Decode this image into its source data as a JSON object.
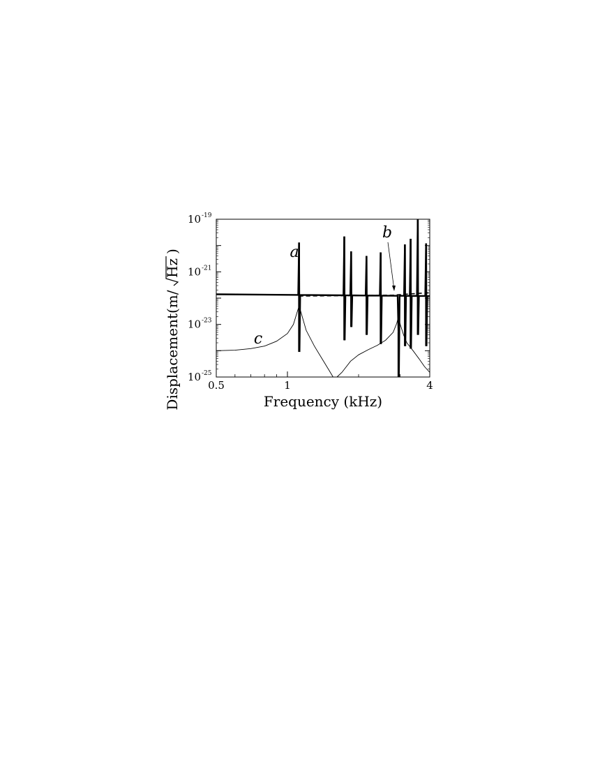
{
  "chart_data": {
    "type": "line",
    "xlabel": "Frequency (kHz)",
    "ylabel_prefix": "Displacement ",
    "ylabel_unit_m": "(m/",
    "ylabel_unit_hz": "Hz",
    "ylabel_unit_close": ")",
    "x_scale": "log",
    "y_scale": "log",
    "xlim": [
      0.5,
      4
    ],
    "ylim": [
      1e-25,
      1e-19
    ],
    "x_ticks": [
      {
        "value": 0.5,
        "label": "0.5"
      },
      {
        "value": 1,
        "label": "1"
      },
      {
        "value": 4,
        "label": "4"
      }
    ],
    "y_ticks": [
      {
        "value": 1e-25,
        "base": "10",
        "exp": "-25"
      },
      {
        "value": 1e-23,
        "base": "10",
        "exp": "-23"
      },
      {
        "value": 1e-21,
        "base": "10",
        "exp": "-21"
      },
      {
        "value": 1e-19,
        "base": "10",
        "exp": "-19"
      }
    ],
    "grid": false,
    "annotations": [
      {
        "text": "a",
        "x": 1.1,
        "y": 1.2e-21
      },
      {
        "text": "b",
        "x": 3.0,
        "y": 1.2e-20
      },
      {
        "text": "c",
        "x": 0.8,
        "y": 6e-24
      }
    ],
    "series": [
      {
        "style": "thick",
        "baseline_left": 1.4e-22,
        "baseline_right": 1.2e-22,
        "resonances": [
          {
            "f_khz": 1.12,
            "peak": 1.3e-20,
            "dip": 9e-25
          },
          {
            "f_khz": 1.74,
            "peak": 2.2e-20,
            "dip": 2.5e-24
          },
          {
            "f_khz": 1.86,
            "peak": 6e-21,
            "dip": 8e-24
          },
          {
            "f_khz": 2.16,
            "peak": 4e-21,
            "dip": 4e-24
          },
          {
            "f_khz": 2.48,
            "peak": 5.5e-21,
            "dip": 1.8e-24
          },
          {
            "f_khz": 2.95,
            "peak": 5e-24,
            "dip": 1e-25
          },
          {
            "f_khz": 3.14,
            "peak": 1.1e-20,
            "dip": 1.5e-24
          },
          {
            "f_khz": 3.32,
            "peak": 1.8e-20,
            "dip": 1.2e-24
          },
          {
            "f_khz": 3.56,
            "peak": 1e-19,
            "dip": 4e-24
          },
          {
            "f_khz": 3.86,
            "peak": 1.2e-20,
            "dip": 1.5e-24
          }
        ]
      },
      {
        "style": "dashed",
        "points": [
          [
            1.12,
            1.2e-22
          ],
          [
            2.0,
            1.25e-22
          ],
          [
            2.8,
            1.3e-22
          ],
          [
            3.3,
            1.45e-22
          ],
          [
            4.0,
            1.6e-22
          ]
        ]
      },
      {
        "style": "thin",
        "points": [
          [
            0.5,
            1e-24
          ],
          [
            0.6,
            1.05e-24
          ],
          [
            0.7,
            1.2e-24
          ],
          [
            0.8,
            1.5e-24
          ],
          [
            0.9,
            2.3e-24
          ],
          [
            1.0,
            4.5e-24
          ],
          [
            1.06,
            1e-23
          ],
          [
            1.1,
            3e-23
          ],
          [
            1.12,
            5e-23
          ],
          [
            1.14,
            3e-23
          ],
          [
            1.2,
            6e-24
          ],
          [
            1.3,
            1.5e-24
          ],
          [
            1.4,
            5e-25
          ],
          [
            1.5,
            1.8e-25
          ],
          [
            1.56,
            1e-25
          ]
        ]
      },
      {
        "style": "thin",
        "points": [
          [
            1.62,
            1e-25
          ],
          [
            1.7,
            1.5e-25
          ],
          [
            1.85,
            4e-25
          ],
          [
            2.0,
            7e-25
          ],
          [
            2.2,
            1.1e-24
          ],
          [
            2.4,
            1.6e-24
          ],
          [
            2.6,
            2.5e-24
          ],
          [
            2.8,
            5e-24
          ],
          [
            2.9,
            1.1e-23
          ],
          [
            2.95,
            2e-23
          ],
          [
            3.0,
            1e-23
          ],
          [
            3.1,
            4e-24
          ],
          [
            3.2,
            2e-24
          ],
          [
            3.4,
            1e-24
          ],
          [
            3.6,
            5e-25
          ],
          [
            3.8,
            2.5e-25
          ],
          [
            4.0,
            1.5e-25
          ]
        ]
      }
    ]
  }
}
